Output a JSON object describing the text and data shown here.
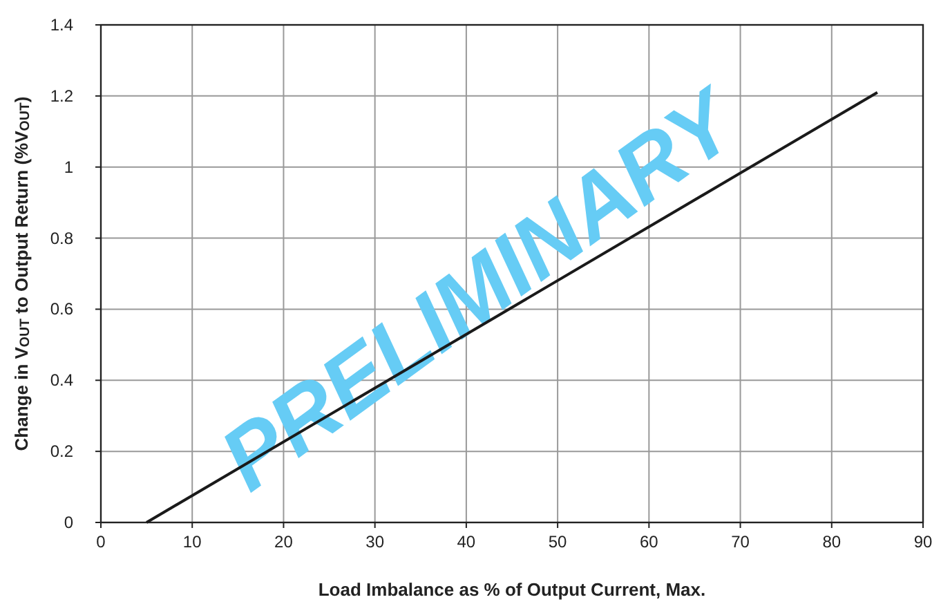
{
  "chart_data": {
    "type": "line",
    "xlabel": "Load Imbalance as % of Output Current, Max.",
    "ylabel": "Change in V$_{OUT}$ to Output Return (%V$_{OUT}$)",
    "x": [
      5,
      85
    ],
    "series": [
      {
        "color": "#1a1a1a",
        "values": [
          0,
          1.21
        ]
      }
    ],
    "xlim": [
      0,
      90
    ],
    "xticks": [
      0,
      10,
      20,
      30,
      40,
      50,
      60,
      70,
      80,
      90
    ],
    "ylim": [
      0,
      1.4
    ],
    "yticks": [
      0,
      0.2,
      0.4,
      0.6,
      0.8,
      1,
      1.2,
      1.4
    ],
    "grid": true,
    "marker": "none",
    "line_style": "solid",
    "annotations": [
      "PRELIMINARY"
    ]
  }
}
